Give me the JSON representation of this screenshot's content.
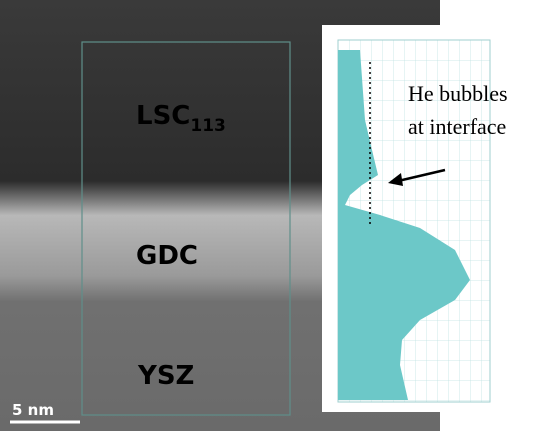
{
  "labels": {
    "lsc": "LSC",
    "lsc_sub": "113",
    "gdc": "GDC",
    "ysz": "YSZ",
    "scale_bar": "5 nm"
  },
  "annotation": [
    "He bubbles",
    "at interface"
  ]
}
